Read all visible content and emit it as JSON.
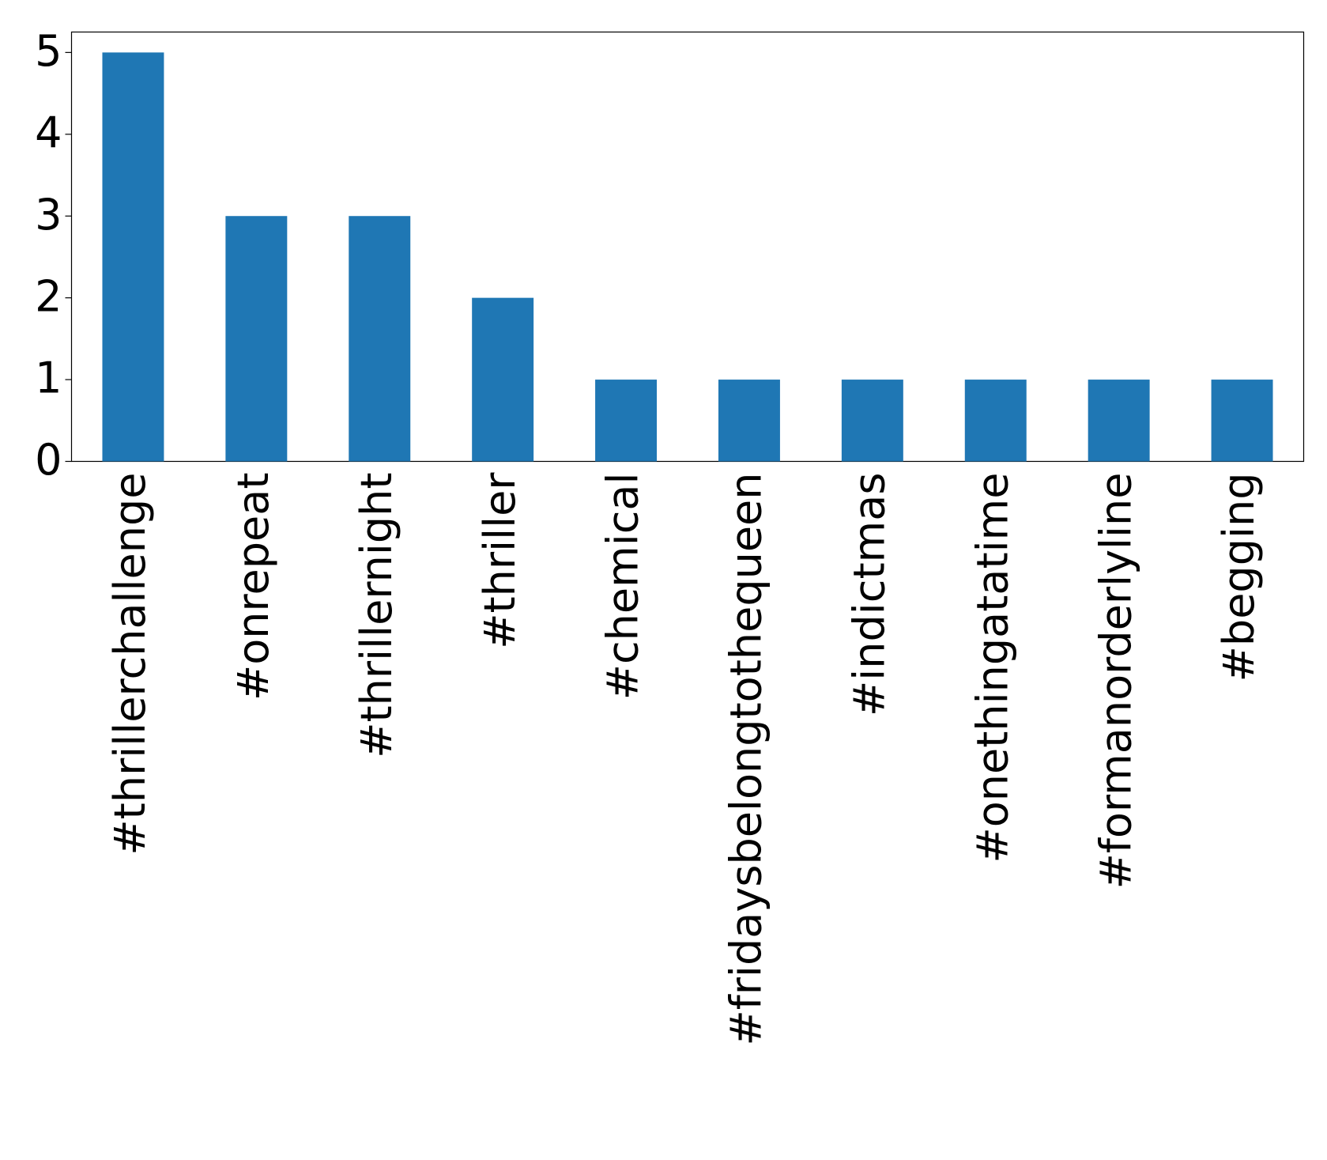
{
  "chart_data": {
    "type": "bar",
    "categories": [
      "#thrillerchallenge",
      "#onrepeat",
      "#thrillernight",
      "#thriller",
      "#chemical",
      "#fridaysbelongtothequeen",
      "#indictmas",
      "#onethingatatime",
      "#formanorderlyline",
      "#begging"
    ],
    "values": [
      5,
      3,
      3,
      2,
      1,
      1,
      1,
      1,
      1,
      1
    ],
    "color": "#1f77b4",
    "ylim": [
      0,
      5.25
    ],
    "yticks": [
      0,
      1,
      2,
      3,
      4,
      5
    ],
    "grid": false
  }
}
